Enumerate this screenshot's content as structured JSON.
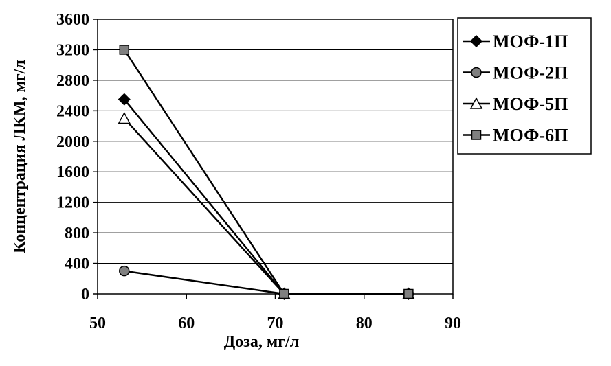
{
  "chart_data": {
    "type": "line",
    "xlabel": "Доза, мг/л",
    "ylabel": "Концентрация ЛКМ, мг/л",
    "xlim": [
      50,
      90
    ],
    "ylim": [
      0,
      3600
    ],
    "x_ticks": [
      "50",
      "60",
      "70",
      "80",
      "90"
    ],
    "y_ticks": [
      "0",
      "400",
      "800",
      "1200",
      "1600",
      "2000",
      "2400",
      "2800",
      "3200",
      "3600"
    ],
    "grid": "horizontal",
    "legend_position": "right",
    "series": [
      {
        "name": "МОФ-1П",
        "marker": "diamond",
        "fill": "#000000",
        "points": [
          [
            53,
            2550
          ],
          [
            71,
            0
          ],
          [
            85,
            0
          ]
        ]
      },
      {
        "name": "МОФ-2П",
        "marker": "circle",
        "fill": "#808080",
        "points": [
          [
            53,
            300
          ],
          [
            71,
            0
          ],
          [
            85,
            0
          ]
        ]
      },
      {
        "name": "МОФ-5П",
        "marker": "triangle",
        "fill": "#ffffff",
        "points": [
          [
            53,
            2300
          ],
          [
            71,
            0
          ],
          [
            85,
            0
          ]
        ]
      },
      {
        "name": "МОФ-6П",
        "marker": "square",
        "fill": "#808080",
        "points": [
          [
            53,
            3200
          ],
          [
            71,
            0
          ],
          [
            85,
            0
          ]
        ]
      }
    ]
  }
}
